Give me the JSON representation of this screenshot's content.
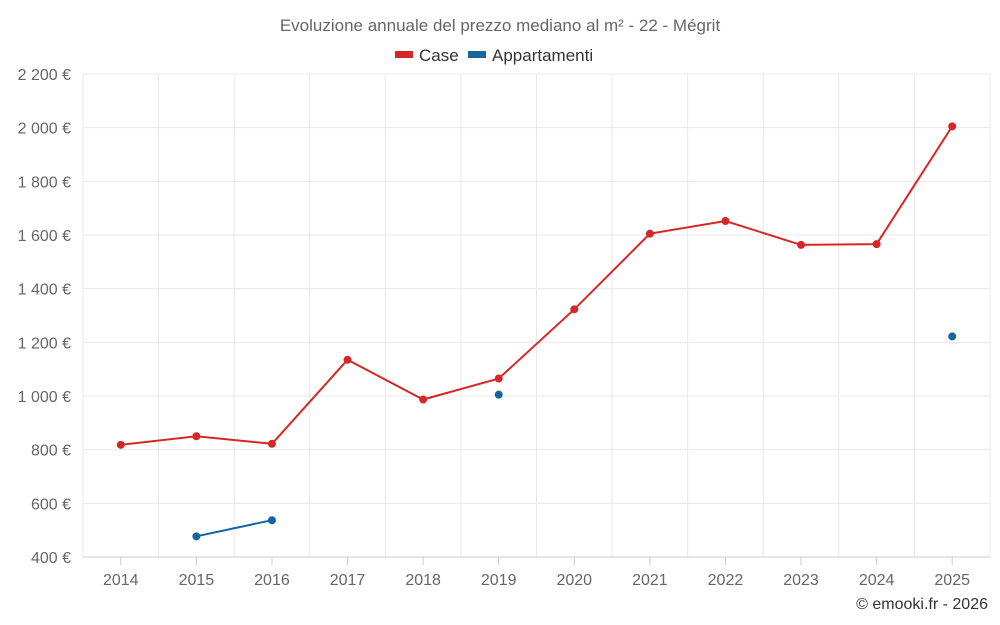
{
  "chart_data": {
    "type": "line",
    "title": "Evoluzione annuale del prezzo mediano al m² - 22 - Mégrit",
    "categories": [
      "2014",
      "2015",
      "2016",
      "2017",
      "2018",
      "2019",
      "2020",
      "2021",
      "2022",
      "2023",
      "2024",
      "2025"
    ],
    "series": [
      {
        "name": "Case",
        "color": "#d62728",
        "values": [
          818,
          850,
          822,
          1135,
          987,
          1065,
          1323,
          1605,
          1652,
          1563,
          1566,
          2005
        ]
      },
      {
        "name": "Appartamenti",
        "color": "#1565a0",
        "values": [
          null,
          477,
          537,
          null,
          null,
          1005,
          null,
          null,
          null,
          null,
          null,
          1222
        ]
      }
    ],
    "ylim": [
      400,
      2200
    ],
    "yticks": [
      400,
      600,
      800,
      1000,
      1200,
      1400,
      1600,
      1800,
      2000,
      2200
    ],
    "ytick_labels": [
      "400 €",
      "600 €",
      "800 €",
      "1 000 €",
      "1 200 €",
      "1 400 €",
      "1 600 €",
      "1 800 €",
      "2 000 €",
      "2 200 €"
    ],
    "xlabel": "",
    "ylabel": "",
    "grid": true,
    "legend_position": "top-center"
  },
  "credit": "© emooki.fr - 2026"
}
